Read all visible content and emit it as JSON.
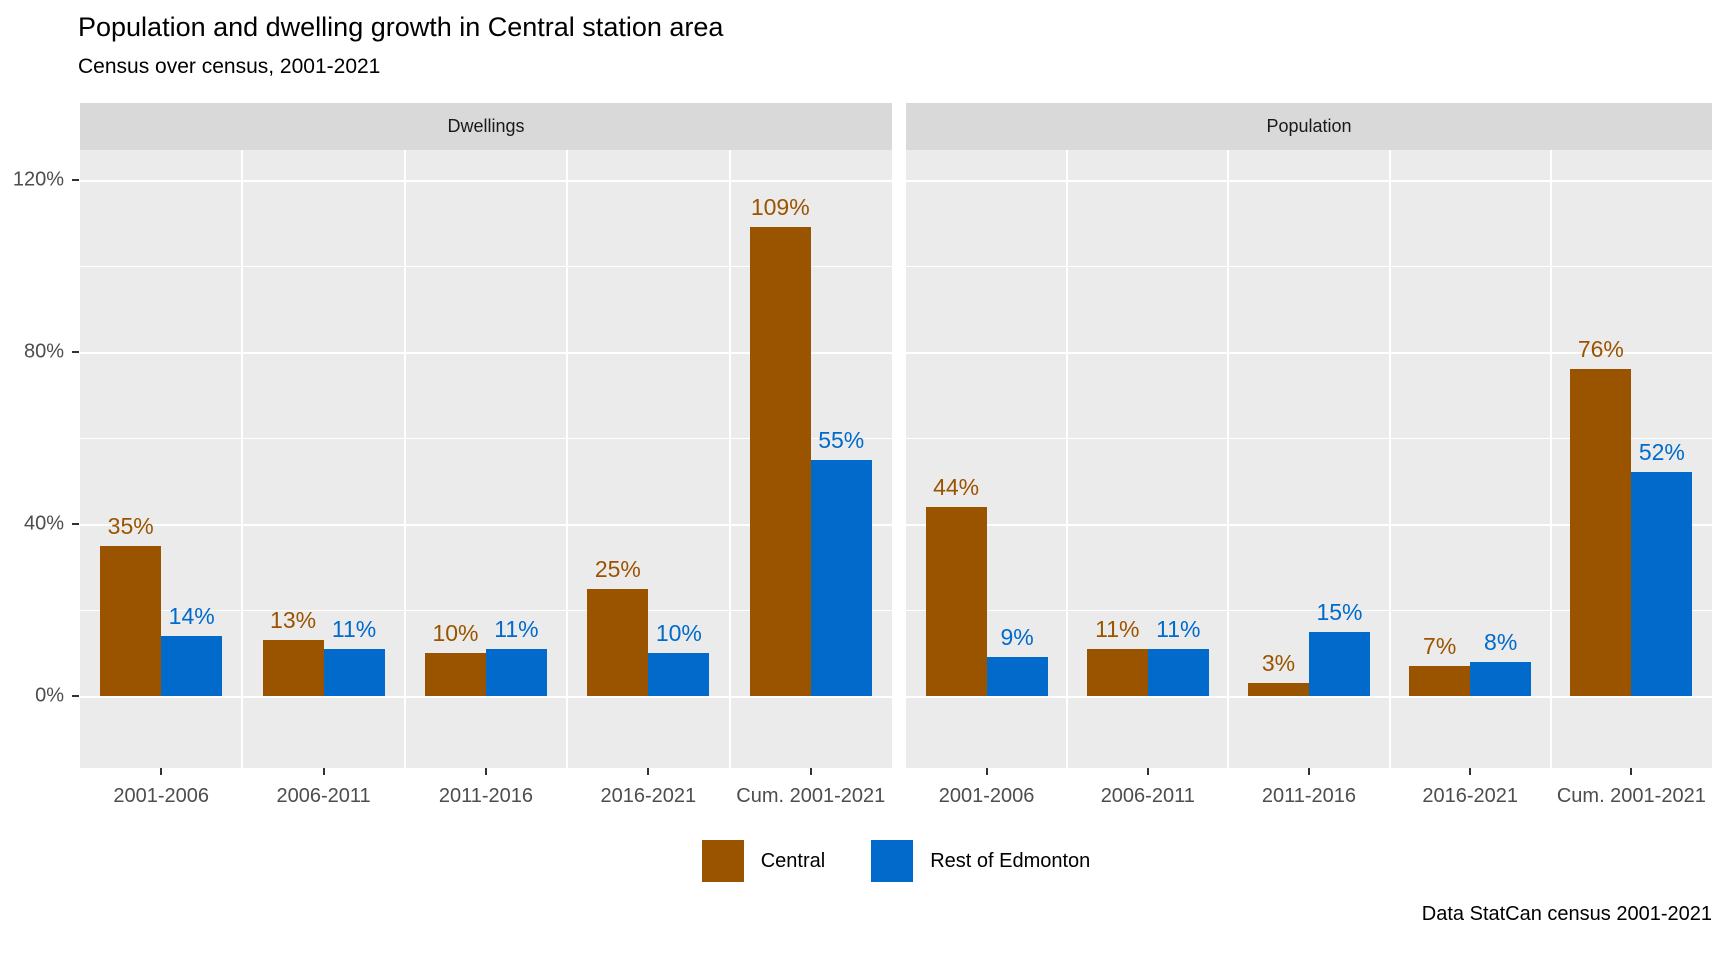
{
  "title": "Population and dwelling growth in Central station area",
  "subtitle": "Census over census, 2001-2021",
  "caption": "Data StatCan census 2001-2021",
  "legend": {
    "items": [
      {
        "label": "Central",
        "color": "#9A5400"
      },
      {
        "label": "Rest of Edmonton",
        "color": "#016ACB"
      }
    ]
  },
  "chart_data": {
    "type": "bar",
    "grouping": "dodged",
    "categories": [
      "2001-2006",
      "2006-2011",
      "2011-2016",
      "2016-2021",
      "Cum. 2001-2021"
    ],
    "facets": [
      {
        "label": "Dwellings",
        "series": [
          {
            "name": "Central",
            "color": "#9A5400",
            "values": [
              35,
              13,
              10,
              25,
              109
            ]
          },
          {
            "name": "Rest of Edmonton",
            "color": "#016ACB",
            "values": [
              14,
              11,
              11,
              10,
              55
            ]
          }
        ]
      },
      {
        "label": "Population",
        "series": [
          {
            "name": "Central",
            "color": "#9A5400",
            "values": [
              44,
              11,
              3,
              7,
              76
            ]
          },
          {
            "name": "Rest of Edmonton",
            "color": "#016ACB",
            "values": [
              9,
              11,
              15,
              8,
              52
            ]
          }
        ]
      }
    ],
    "value_label_format": "{value}%",
    "y_axis": {
      "tick_labels": [
        "0%",
        "40%",
        "80%",
        "120%"
      ],
      "tick_values": [
        0,
        40,
        80,
        120
      ],
      "minor_step": 20,
      "ylim": [
        -17,
        127
      ],
      "unit": "%"
    },
    "grid": true,
    "legend_position": "bottom",
    "panel_bg": "#EBEBEB",
    "strip_bg": "#D9D9D9",
    "gridline_color": "#FFFFFF",
    "axis_text_color": "#4D4D4D"
  }
}
